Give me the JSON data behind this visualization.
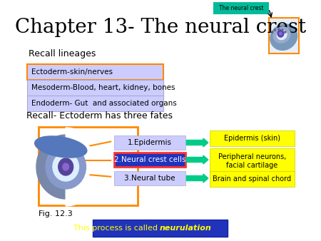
{
  "title": "Chapter 13- The neural crest",
  "title_fontsize": 20,
  "bg_color": "#ffffff",
  "recall_lineages_label": "Recall lineages",
  "lineage_boxes": [
    {
      "text": "Ectoderm-skin/nerves",
      "bg": "#ccccff",
      "border": "#ff8800"
    },
    {
      "text": "Mesoderm-Blood, heart, kidney, bones",
      "bg": "#ccccff",
      "border": "#aaaacc"
    },
    {
      "text": "Endoderm- Gut  and associated organs",
      "bg": "#ccccff",
      "border": "#aaaacc"
    }
  ],
  "recall_ecto_label": "Recall- Ectoderm has three fates",
  "fate_texts": [
    "1.Epidermis",
    "2.Neural crest cells",
    "3.Neural tube"
  ],
  "fate_bgs": [
    "#ccccff",
    "#2233bb",
    "#ccccff"
  ],
  "fate_fgs": [
    "black",
    "white",
    "black"
  ],
  "fate_borders": [
    "#aaaacc",
    "#ff3333",
    "#aaaacc"
  ],
  "outcome_texts": [
    "Epidermis (skin)",
    "Peripheral neurons,\nfacial cartilage",
    "Brain and spinal chord"
  ],
  "neurulation_normal": "This process is called ",
  "neurulation_italic": "neurulation",
  "neurulation_bg": "#2233bb",
  "neurulation_fg": "#ffff00",
  "fig_label": "Fig. 12.3",
  "neural_crest_label": "The neural crest",
  "nc_label_bg": "#00bb99",
  "arrow_color": "#00cc88"
}
